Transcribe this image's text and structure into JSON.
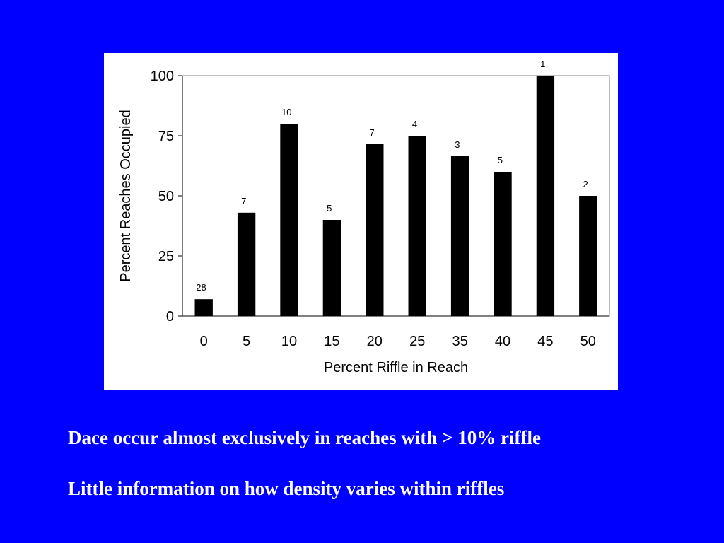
{
  "slide": {
    "background": "#0000ff",
    "bullets": [
      "Dace occur almost exclusively in reaches with > 10% riffle",
      "Little information on how density varies within riffles"
    ]
  },
  "chart_data": {
    "type": "bar",
    "categories": [
      "0",
      "5",
      "10",
      "15",
      "20",
      "25",
      "35",
      "40",
      "45",
      "50"
    ],
    "values": [
      7,
      43,
      80,
      40,
      71.5,
      75,
      66.5,
      60,
      100,
      50
    ],
    "bar_labels": [
      "28",
      "7",
      "10",
      "5",
      "7",
      "4",
      "3",
      "5",
      "1",
      "2"
    ],
    "xlabel": "Percent Riffle in Reach",
    "ylabel": "Percent Reaches Occupied",
    "ylim": [
      0,
      100
    ],
    "yticks": [
      "0",
      "25",
      "50",
      "75",
      "100"
    ],
    "bar_color": "#000000",
    "grid": false,
    "legend": "none"
  }
}
